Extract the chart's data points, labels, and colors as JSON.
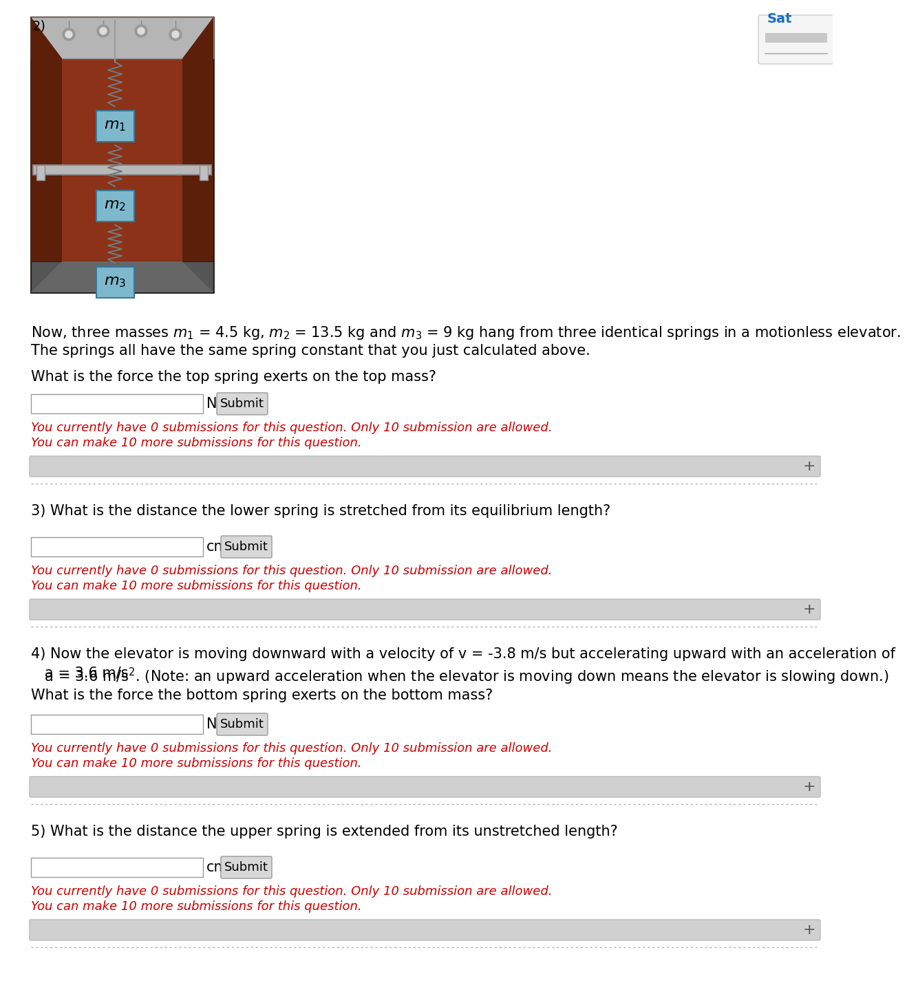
{
  "bg_color": "#ffffff",
  "tab_text": "Sat",
  "tab_bg": "#1a6fbd",
  "tab_text_color": "#1a6fbd",
  "question2_label": "2)",
  "q2_line1a": "Now, three masses m",
  "q2_line1b": " = 4.5 kg, m",
  "q2_line1c": " = 13.5 kg and m",
  "q2_line1d": " = 9 kg hang from three identical springs in a motionless elevator.",
  "q2_line2": "The springs all have the same spring constant that you just calculated above.",
  "q2_subq": "What is the force the top spring exerts on the top mass?",
  "q2_unit": "N",
  "q3_label": "3)",
  "q3_text": "What is the distance the lower spring is stretched from its equilibrium length?",
  "q3_unit": "cm",
  "q4_label": "4)",
  "q4_line1": "Now the elevator is moving downward with a velocity of v = -3.8 m/s but accelerating upward with an acceleration of",
  "q4_line2a": "   a = 3.6 m/s",
  "q4_line2b": ". (Note: an upward acceleration when the elevator is moving down means the elevator is slowing down.)",
  "q4_subq": "What is the force the bottom spring exerts on the bottom mass?",
  "q4_unit": "N",
  "q5_label": "5)",
  "q5_text": "What is the distance the upper spring is extended from its unstretched length?",
  "q5_unit": "cm",
  "submit_text": "Submit",
  "sub_line1": "You currently have 0 submissions for this question. Only 10 submission are allowed.",
  "sub_line2": "You can make 10 more submissions for this question.",
  "sub_color": "#cc0000",
  "submit_btn_color": "#d8d8d8",
  "divider_color": "#aaaaaa",
  "bar_color": "#d0d0d0",
  "text_color": "#000000",
  "mass_box_color": "#7eb8cc",
  "elevator_wood": "#8b3218",
  "elevator_wood_dark": "#5c1f0a",
  "elevator_ceil": "#b8b8b8",
  "elevator_floor": "#444444",
  "spring_color": "#777777",
  "text_fontsize": 15,
  "sub_fontsize": 13,
  "label_fontsize": 11
}
